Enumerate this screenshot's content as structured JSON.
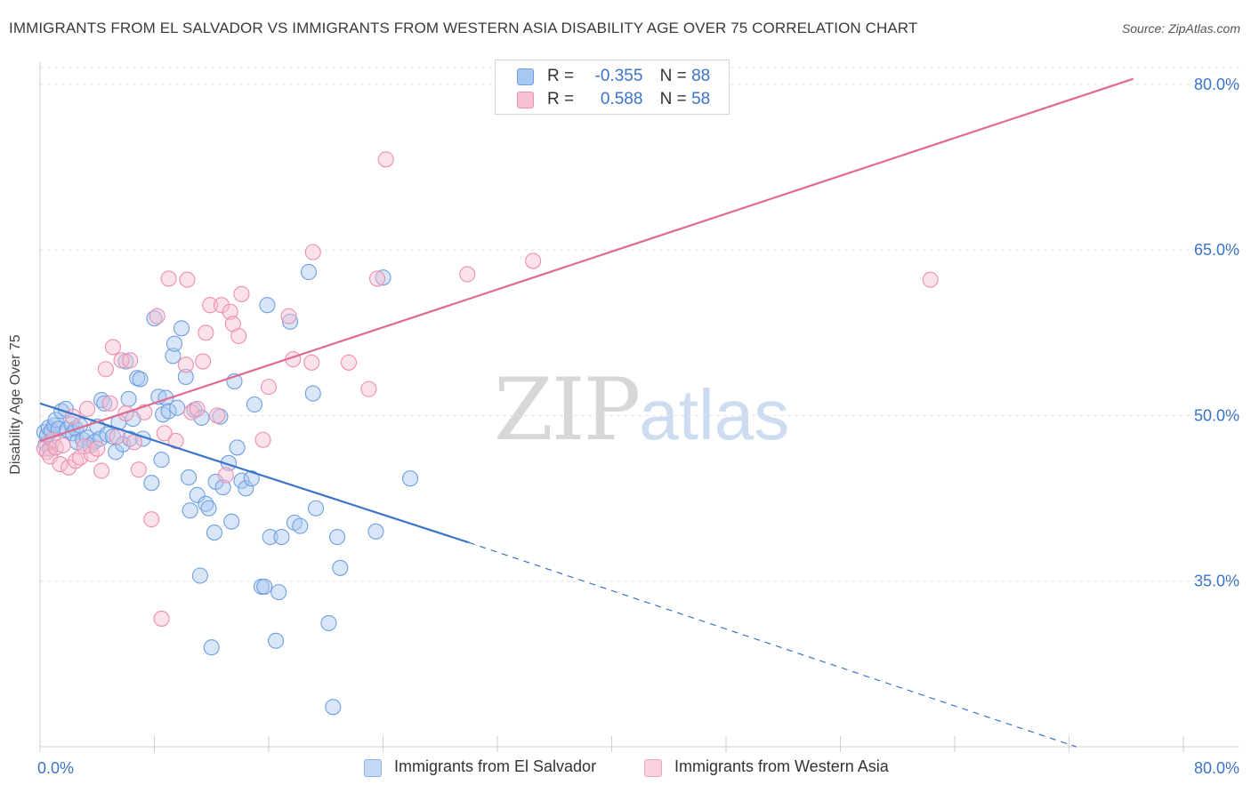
{
  "title": "IMMIGRANTS FROM EL SALVADOR VS IMMIGRANTS FROM WESTERN ASIA DISABILITY AGE OVER 75 CORRELATION CHART",
  "source": "Source: ZipAtlas.com",
  "watermark": {
    "zip": "ZIP",
    "atlas": "atlas"
  },
  "legend": {
    "r_label": "R =",
    "n_label": "N =",
    "rows": [
      {
        "r": "-0.355",
        "n": "88",
        "color": "#a9c8f0",
        "stroke": "#6f9fe0"
      },
      {
        "r": "0.588",
        "n": "58",
        "color": "#f7bfd0",
        "stroke": "#ec8fae"
      }
    ]
  },
  "bottom_legend": [
    {
      "label": "Immigrants from El Salvador",
      "color": "#c4d9f5",
      "stroke": "#8fb2e6"
    },
    {
      "label": "Immigrants from Western Asia",
      "color": "#fad2de",
      "stroke": "#f0a3bb"
    }
  ],
  "chart_data": {
    "type": "scatter",
    "title": "IMMIGRANTS FROM EL SALVADOR VS IMMIGRANTS FROM WESTERN ASIA DISABILITY AGE OVER 75 CORRELATION CHART",
    "xlabel": "",
    "ylabel": "Disability Age Over 75",
    "xlim": [
      0,
      80
    ],
    "ylim": [
      20,
      82
    ],
    "x_tick_labels": [
      "0.0%",
      "80.0%"
    ],
    "y_ticks": [
      35,
      50,
      65,
      80
    ],
    "y_tick_labels": [
      "35.0%",
      "50.0%",
      "65.0%",
      "80.0%"
    ],
    "grid": true,
    "legend_position": "top-center",
    "colors": {
      "blue": "#3b74c9",
      "pink": "#e06a93"
    },
    "series": [
      {
        "name": "Immigrants from El Salvador",
        "color": "#3b74c9",
        "trend": {
          "x0": 0,
          "y0": 51.1,
          "x1": 30,
          "y1": 38.5,
          "dash_to_x": 72.5,
          "dash_to_y": 20.0
        },
        "points": [
          [
            0.3,
            48.5
          ],
          [
            0.4,
            47.4
          ],
          [
            0.5,
            48.2
          ],
          [
            0.6,
            48.9
          ],
          [
            0.7,
            47.0
          ],
          [
            0.8,
            48.6
          ],
          [
            1.0,
            49.1
          ],
          [
            1.1,
            49.6
          ],
          [
            1.3,
            48.8
          ],
          [
            1.5,
            50.4
          ],
          [
            1.8,
            50.6
          ],
          [
            1.9,
            48.7
          ],
          [
            2.2,
            49.2
          ],
          [
            2.3,
            48.4
          ],
          [
            2.5,
            48.8
          ],
          [
            2.6,
            47.6
          ],
          [
            2.8,
            49.1
          ],
          [
            3.0,
            47.8
          ],
          [
            3.3,
            48.0
          ],
          [
            3.5,
            47.3
          ],
          [
            3.8,
            47.6
          ],
          [
            4.0,
            49.0
          ],
          [
            4.2,
            47.9
          ],
          [
            4.3,
            51.4
          ],
          [
            4.5,
            51.1
          ],
          [
            4.7,
            48.3
          ],
          [
            5.1,
            48.1
          ],
          [
            5.3,
            46.7
          ],
          [
            5.5,
            49.4
          ],
          [
            5.8,
            47.4
          ],
          [
            6.0,
            54.9
          ],
          [
            6.2,
            51.5
          ],
          [
            6.3,
            47.9
          ],
          [
            6.5,
            49.7
          ],
          [
            6.8,
            53.4
          ],
          [
            7.0,
            53.3
          ],
          [
            7.2,
            47.9
          ],
          [
            7.8,
            43.9
          ],
          [
            8.0,
            58.8
          ],
          [
            8.3,
            51.7
          ],
          [
            8.5,
            46.0
          ],
          [
            8.6,
            50.1
          ],
          [
            8.8,
            51.6
          ],
          [
            9.0,
            50.4
          ],
          [
            9.3,
            55.4
          ],
          [
            9.4,
            56.5
          ],
          [
            9.6,
            50.7
          ],
          [
            9.9,
            57.9
          ],
          [
            10.2,
            53.5
          ],
          [
            10.4,
            44.4
          ],
          [
            10.5,
            41.4
          ],
          [
            10.8,
            50.5
          ],
          [
            11.0,
            42.8
          ],
          [
            11.2,
            35.5
          ],
          [
            11.3,
            49.8
          ],
          [
            11.6,
            42.0
          ],
          [
            11.8,
            41.6
          ],
          [
            12.0,
            29.0
          ],
          [
            12.2,
            39.4
          ],
          [
            12.3,
            44.0
          ],
          [
            12.6,
            49.9
          ],
          [
            12.8,
            43.5
          ],
          [
            13.2,
            45.7
          ],
          [
            13.4,
            40.4
          ],
          [
            13.6,
            53.1
          ],
          [
            13.8,
            47.1
          ],
          [
            14.1,
            44.1
          ],
          [
            14.4,
            43.4
          ],
          [
            14.8,
            44.3
          ],
          [
            15.0,
            51.0
          ],
          [
            15.5,
            34.5
          ],
          [
            15.7,
            34.5
          ],
          [
            15.9,
            60.0
          ],
          [
            16.1,
            39.0
          ],
          [
            16.5,
            29.6
          ],
          [
            16.7,
            34.0
          ],
          [
            16.9,
            39.0
          ],
          [
            17.5,
            58.5
          ],
          [
            17.8,
            40.3
          ],
          [
            18.2,
            40.0
          ],
          [
            18.8,
            63.0
          ],
          [
            19.1,
            52.0
          ],
          [
            19.3,
            41.6
          ],
          [
            20.2,
            31.2
          ],
          [
            20.5,
            23.6
          ],
          [
            20.8,
            39.0
          ],
          [
            21.0,
            36.2
          ],
          [
            23.5,
            39.5
          ],
          [
            24.0,
            62.5
          ],
          [
            25.9,
            44.3
          ]
        ]
      },
      {
        "name": "Immigrants from Western Asia",
        "color": "#e06a93",
        "trend": {
          "x0": 0,
          "y0": 47.7,
          "x1": 76.5,
          "y1": 80.5
        },
        "points": [
          [
            0.3,
            47.0
          ],
          [
            0.5,
            46.7
          ],
          [
            0.7,
            46.3
          ],
          [
            0.9,
            47.8
          ],
          [
            1.1,
            47.1
          ],
          [
            1.4,
            45.6
          ],
          [
            1.6,
            47.3
          ],
          [
            2.0,
            45.3
          ],
          [
            2.3,
            49.9
          ],
          [
            2.5,
            45.9
          ],
          [
            2.8,
            46.2
          ],
          [
            3.1,
            47.2
          ],
          [
            3.3,
            50.6
          ],
          [
            3.6,
            46.5
          ],
          [
            4.0,
            47.0
          ],
          [
            4.3,
            45.0
          ],
          [
            4.6,
            54.2
          ],
          [
            4.9,
            51.1
          ],
          [
            5.1,
            56.2
          ],
          [
            5.4,
            48.1
          ],
          [
            5.7,
            55.0
          ],
          [
            6.0,
            50.2
          ],
          [
            6.3,
            55.0
          ],
          [
            6.6,
            47.6
          ],
          [
            6.9,
            45.1
          ],
          [
            7.3,
            50.3
          ],
          [
            7.8,
            40.6
          ],
          [
            8.2,
            59.0
          ],
          [
            8.5,
            31.6
          ],
          [
            8.7,
            48.4
          ],
          [
            9.0,
            62.4
          ],
          [
            9.5,
            47.7
          ],
          [
            10.2,
            54.6
          ],
          [
            10.3,
            62.3
          ],
          [
            10.6,
            50.3
          ],
          [
            11.0,
            50.6
          ],
          [
            11.4,
            54.9
          ],
          [
            11.6,
            57.5
          ],
          [
            11.9,
            60.0
          ],
          [
            12.4,
            50.0
          ],
          [
            12.7,
            60.0
          ],
          [
            13.0,
            44.6
          ],
          [
            13.3,
            59.4
          ],
          [
            13.5,
            58.3
          ],
          [
            13.9,
            57.2
          ],
          [
            14.1,
            61.0
          ],
          [
            15.6,
            47.8
          ],
          [
            16.0,
            52.6
          ],
          [
            17.4,
            59.0
          ],
          [
            17.7,
            55.1
          ],
          [
            19.0,
            54.8
          ],
          [
            19.1,
            64.8
          ],
          [
            21.6,
            54.8
          ],
          [
            23.0,
            52.4
          ],
          [
            23.6,
            62.4
          ],
          [
            24.2,
            73.2
          ],
          [
            29.9,
            62.8
          ],
          [
            34.5,
            64.0
          ],
          [
            62.3,
            62.3
          ]
        ]
      }
    ]
  }
}
